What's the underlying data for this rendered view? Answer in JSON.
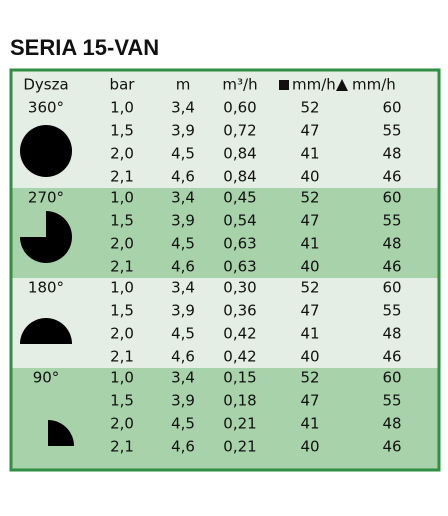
{
  "title": "SERIA 15-VAN",
  "table": {
    "header": [
      "Dysza",
      "bar",
      "m",
      "m³/h",
      "mm/h",
      "mm/h"
    ],
    "groups": [
      {
        "label": "360°",
        "rows": [
          [
            "1,0",
            "3,4",
            "0,60",
            "52",
            "60"
          ],
          [
            "1,5",
            "3,9",
            "0,72",
            "47",
            "55"
          ],
          [
            "2,0",
            "4,5",
            "0,84",
            "41",
            "48"
          ],
          [
            "2,1",
            "4,6",
            "0,84",
            "40",
            "46"
          ]
        ]
      },
      {
        "label": "270°",
        "rows": [
          [
            "1,0",
            "3,4",
            "0,45",
            "52",
            "60"
          ],
          [
            "1,5",
            "3,9",
            "0,54",
            "47",
            "55"
          ],
          [
            "2,0",
            "4,5",
            "0,63",
            "41",
            "48"
          ],
          [
            "2,1",
            "4,6",
            "0,63",
            "40",
            "46"
          ]
        ]
      },
      {
        "label": "180°",
        "rows": [
          [
            "1,0",
            "3,4",
            "0,30",
            "52",
            "60"
          ],
          [
            "1,5",
            "3,9",
            "0,36",
            "47",
            "55"
          ],
          [
            "2,0",
            "4,5",
            "0,42",
            "41",
            "48"
          ],
          [
            "2,1",
            "4,6",
            "0,42",
            "40",
            "46"
          ]
        ]
      },
      {
        "label": "90°",
        "rows": [
          [
            "1,0",
            "3,4",
            "0,15",
            "52",
            "60"
          ],
          [
            "1,5",
            "3,9",
            "0,18",
            "47",
            "55"
          ],
          [
            "2,0",
            "4,5",
            "0,21",
            "41",
            "48"
          ],
          [
            "2,1",
            "4,6",
            "0,21",
            "40",
            "46"
          ]
        ]
      }
    ]
  }
}
